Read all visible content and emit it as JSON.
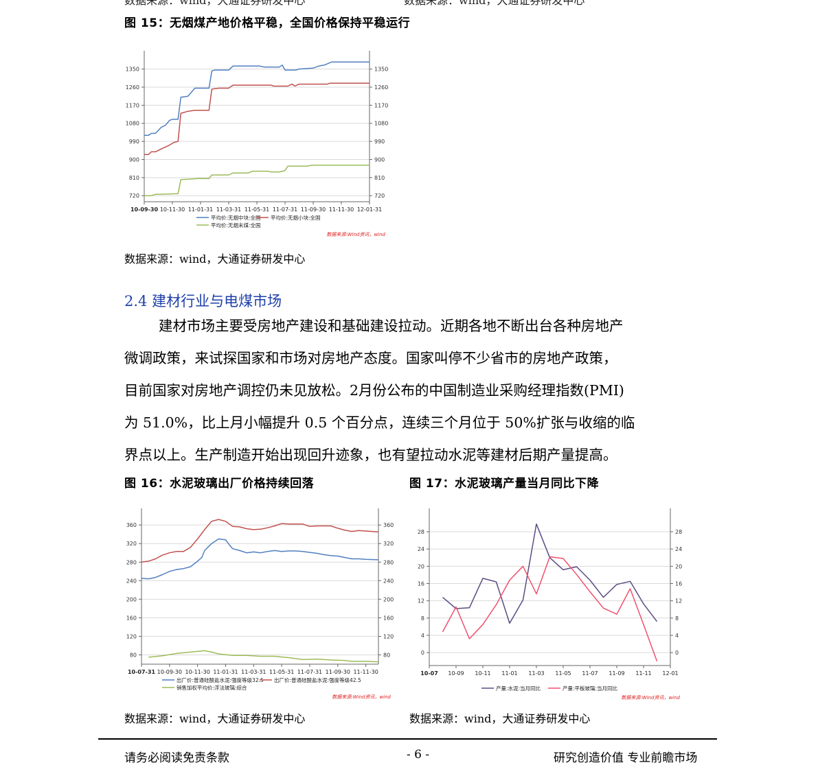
{
  "top_cut": {
    "left": "数据来源：wind，大通证券研发中心",
    "right": "数据来源：wind，大通证券研发中心"
  },
  "fig15": {
    "title": "图 15：无烟煤产地价格平稳，全国价格保持平稳运行",
    "source": "数据来源：wind，大通证券研发中心",
    "chart_data": {
      "type": "line",
      "x_ticks": [
        "10-09-30",
        "10-11-30",
        "11-01-31",
        "11-03-31",
        "11-05-31",
        "11-07-31",
        "11-09-30",
        "11-11-30",
        "12-01-31"
      ],
      "y_ticks": [
        "1350",
        "1260",
        "1170",
        "1080",
        "990",
        "900",
        "810",
        "720"
      ],
      "ylim": [
        690,
        1400
      ],
      "x_months": [
        0,
        16
      ],
      "legend": [
        "平均价:无烟中块:全国",
        "平均价:无烟小块:全国",
        "平均价:无烟末煤:全国"
      ],
      "watermark": "数据来源:Wind资讯，wind",
      "colors": [
        "#4f7fc0",
        "#c0504d",
        "#9bbb59"
      ],
      "series": [
        {
          "name": "平均价:无烟中块:全国",
          "points": [
            [
              0,
              1020
            ],
            [
              0.3,
              1020
            ],
            [
              0.5,
              1030
            ],
            [
              0.8,
              1030
            ],
            [
              1.2,
              1060
            ],
            [
              1.5,
              1070
            ],
            [
              1.8,
              1095
            ],
            [
              2.0,
              1100
            ],
            [
              2.4,
              1100
            ],
            [
              2.6,
              1210
            ],
            [
              3.1,
              1215
            ],
            [
              3.6,
              1255
            ],
            [
              4.6,
              1255
            ],
            [
              4.8,
              1340
            ],
            [
              5.0,
              1345
            ],
            [
              6.0,
              1345
            ],
            [
              6.3,
              1365
            ],
            [
              8.2,
              1365
            ],
            [
              8.5,
              1360
            ],
            [
              9.6,
              1360
            ],
            [
              9.8,
              1370
            ],
            [
              10.0,
              1345
            ],
            [
              10.8,
              1345
            ],
            [
              11.0,
              1350
            ],
            [
              12.0,
              1355
            ],
            [
              12.4,
              1365
            ],
            [
              12.8,
              1370
            ],
            [
              13.3,
              1385
            ],
            [
              16,
              1385
            ]
          ]
        },
        {
          "name": "平均价:无烟小块:全国",
          "points": [
            [
              0,
              925
            ],
            [
              0.3,
              925
            ],
            [
              0.5,
              938
            ],
            [
              0.8,
              938
            ],
            [
              1.2,
              952
            ],
            [
              1.5,
              962
            ],
            [
              1.8,
              972
            ],
            [
              2.1,
              985
            ],
            [
              2.4,
              990
            ],
            [
              2.6,
              1130
            ],
            [
              3.1,
              1140
            ],
            [
              3.6,
              1145
            ],
            [
              4.6,
              1145
            ],
            [
              4.8,
              1250
            ],
            [
              5.3,
              1255
            ],
            [
              6.0,
              1255
            ],
            [
              6.3,
              1270
            ],
            [
              9.0,
              1270
            ],
            [
              9.2,
              1265
            ],
            [
              10.2,
              1265
            ],
            [
              10.5,
              1275
            ],
            [
              10.7,
              1265
            ],
            [
              11.0,
              1275
            ],
            [
              13.0,
              1275
            ],
            [
              13.2,
              1280
            ],
            [
              16,
              1280
            ]
          ]
        },
        {
          "name": "平均价:无烟末煤:全国",
          "points": [
            [
              0,
              720
            ],
            [
              0.5,
              720
            ],
            [
              0.8,
              727
            ],
            [
              1.5,
              728
            ],
            [
              2.4,
              730
            ],
            [
              2.6,
              800
            ],
            [
              3.1,
              802
            ],
            [
              3.8,
              805
            ],
            [
              4.6,
              805
            ],
            [
              4.8,
              823
            ],
            [
              6.0,
              823
            ],
            [
              6.3,
              833
            ],
            [
              7.4,
              833
            ],
            [
              7.7,
              842
            ],
            [
              8.8,
              842
            ],
            [
              9.0,
              838
            ],
            [
              9.6,
              838
            ],
            [
              10.0,
              845
            ],
            [
              10.2,
              867
            ],
            [
              11.6,
              867
            ],
            [
              11.9,
              872
            ],
            [
              16,
              872
            ]
          ]
        }
      ]
    }
  },
  "section": {
    "number": "2.4",
    "title": "建材行业与电煤市场"
  },
  "paragraph_lines": [
    "建材市场主要受房地产建设和基础建设拉动。近期各地不断出台各种房地产",
    "微调政策，来试探国家和市场对房地产态度。国家叫停不少省市的房地产政策，",
    "目前国家对房地产调控仍未见放松。2月份公布的中国制造业采购经理指数(PMI)",
    "为 51.0%，比上月小幅提升 0.5 个百分点，连续三个月位于 50%扩张与收缩的临",
    "界点以上。生产制造开始出现回升迹象，也有望拉动水泥等建材后期产量提高。"
  ],
  "fig16": {
    "title": "图 16：水泥玻璃出厂价格持续回落",
    "source": "数据来源：wind，大通证券研发中心",
    "chart_data": {
      "type": "line",
      "x_ticks": [
        "10-07-31",
        "10-09-30",
        "10-11-30",
        "11-01-31",
        "11-03-31",
        "11-05-31",
        "11-07-31",
        "11-09-30",
        "11-11-30"
      ],
      "y_ticks": [
        "360",
        "320",
        "280",
        "240",
        "200",
        "160",
        "120",
        "80"
      ],
      "ylim": [
        60,
        378
      ],
      "x_months": [
        0,
        16.9
      ],
      "legend": [
        "出厂价:普通硅酸盐水泥:强度等级32.5",
        "出厂价:普通硅酸盐水泥:强度等级42.5",
        "销售加权平均价:浮法玻璃:综合"
      ],
      "watermark": "数据来源:Wind资讯，wind",
      "colors": [
        "#4f7fc0",
        "#c0504d",
        "#9bbb59"
      ],
      "series": [
        {
          "name": "出厂价:普通硅酸盐水泥:强度等级32.5",
          "points": [
            [
              0,
              245
            ],
            [
              0.5,
              244
            ],
            [
              1,
              247
            ],
            [
              1.5,
              253
            ],
            [
              2,
              260
            ],
            [
              2.5,
              264
            ],
            [
              3,
              266
            ],
            [
              3.5,
              270
            ],
            [
              4,
              282
            ],
            [
              4.3,
              290
            ],
            [
              4.5,
              305
            ],
            [
              5,
              320
            ],
            [
              5.5,
              330
            ],
            [
              6,
              328
            ],
            [
              6.3,
              316
            ],
            [
              6.5,
              309
            ],
            [
              7,
              305
            ],
            [
              7.5,
              300
            ],
            [
              8,
              302
            ],
            [
              8.5,
              300
            ],
            [
              9,
              303
            ],
            [
              9.5,
              305
            ],
            [
              10,
              303
            ],
            [
              10.5,
              304
            ],
            [
              11,
              304
            ],
            [
              11.5,
              303
            ],
            [
              12,
              301
            ],
            [
              12.5,
              299
            ],
            [
              13,
              296
            ],
            [
              13.5,
              294
            ],
            [
              14,
              293
            ],
            [
              14.5,
              290
            ],
            [
              15,
              287
            ],
            [
              15.5,
              287
            ],
            [
              16,
              286
            ],
            [
              16.9,
              285
            ]
          ]
        },
        {
          "name": "出厂价:普通硅酸盐水泥:强度等级42.5",
          "points": [
            [
              0,
              280
            ],
            [
              0.5,
              282
            ],
            [
              1,
              287
            ],
            [
              1.5,
              295
            ],
            [
              2,
              300
            ],
            [
              2.5,
              303
            ],
            [
              3,
              303
            ],
            [
              3.5,
              312
            ],
            [
              4,
              330
            ],
            [
              4.5,
              350
            ],
            [
              5,
              368
            ],
            [
              5.5,
              372
            ],
            [
              6,
              368
            ],
            [
              6.5,
              357
            ],
            [
              7,
              356
            ],
            [
              7.5,
              352
            ],
            [
              8,
              350
            ],
            [
              8.5,
              351
            ],
            [
              9,
              354
            ],
            [
              9.5,
              358
            ],
            [
              10,
              363
            ],
            [
              10.5,
              362
            ],
            [
              11,
              362
            ],
            [
              11.5,
              362
            ],
            [
              12,
              357
            ],
            [
              12.5,
              358
            ],
            [
              13,
              358
            ],
            [
              13.5,
              358
            ],
            [
              14,
              353
            ],
            [
              14.5,
              349
            ],
            [
              15,
              346
            ],
            [
              15.5,
              348
            ],
            [
              16,
              347
            ],
            [
              16.9,
              345
            ]
          ]
        },
        {
          "name": "销售加权平均价:浮法玻璃:综合",
          "points": [
            [
              0.5,
              75
            ],
            [
              1.5,
              78
            ],
            [
              2.5,
              83
            ],
            [
              3.5,
              86
            ],
            [
              4.5,
              89
            ],
            [
              5,
              86
            ],
            [
              5.5,
              82
            ],
            [
              6.5,
              79
            ],
            [
              7.5,
              79
            ],
            [
              8.5,
              77
            ],
            [
              9.5,
              77
            ],
            [
              10.5,
              74
            ],
            [
              11.5,
              70
            ],
            [
              12.5,
              71
            ],
            [
              13.5,
              69
            ],
            [
              14.5,
              68
            ],
            [
              15,
              66
            ],
            [
              16,
              66
            ],
            [
              16.9,
              65
            ]
          ]
        }
      ]
    }
  },
  "fig17": {
    "title": "图 17：水泥玻璃产量当月同比下降",
    "source": "数据来源：wind，大通证券研发中心",
    "chart_data": {
      "type": "line",
      "x_ticks": [
        "10-07",
        "10-09",
        "10-11",
        "11-01",
        "11-03",
        "11-05",
        "11-07",
        "11-09",
        "11-11",
        "12-01"
      ],
      "y_ticks": [
        "28",
        "24",
        "20",
        "16",
        "12",
        "8",
        "4",
        "0"
      ],
      "ylim": [
        -3,
        31.5
      ],
      "x_months": [
        0,
        18
      ],
      "legend": [
        "产量:水泥:当月同比",
        "产量:平板玻璃:当月同比"
      ],
      "watermark": "数据来源:Wind资讯，wind",
      "colors": [
        "#5b4b82",
        "#f0506e"
      ],
      "series": [
        {
          "name": "产量:水泥:当月同比",
          "points": [
            [
              1,
              12.8
            ],
            [
              2,
              10.2
            ],
            [
              3,
              10.4
            ],
            [
              4,
              17.2
            ],
            [
              5,
              16.4
            ],
            [
              6,
              6.8
            ],
            [
              7,
              12.2
            ],
            [
              8,
              29.8
            ],
            [
              9,
              22
            ],
            [
              10,
              19.2
            ],
            [
              11,
              19.9
            ],
            [
              12,
              16.8
            ],
            [
              13,
              12.8
            ],
            [
              14,
              15.8
            ],
            [
              15,
              16.5
            ],
            [
              16,
              11.3
            ],
            [
              17,
              7.2
            ]
          ]
        },
        {
          "name": "产量:平板玻璃:当月同比",
          "points": [
            [
              1,
              4.8
            ],
            [
              2,
              10.6
            ],
            [
              3,
              3.2
            ],
            [
              4,
              6.5
            ],
            [
              5,
              11.1
            ],
            [
              6,
              16.8
            ],
            [
              7,
              20
            ],
            [
              8,
              13.6
            ],
            [
              9,
              22.2
            ],
            [
              10,
              21.8
            ],
            [
              11,
              18.1
            ],
            [
              12,
              14.1
            ],
            [
              13,
              10.3
            ],
            [
              14,
              8.9
            ],
            [
              15,
              14.8
            ],
            [
              16,
              6.5
            ],
            [
              17,
              -2
            ]
          ]
        }
      ]
    }
  },
  "footer": {
    "left": "请务必阅读免责条款",
    "center": "- 6 -",
    "right": "研究创造价值  专业前瞻市场"
  }
}
